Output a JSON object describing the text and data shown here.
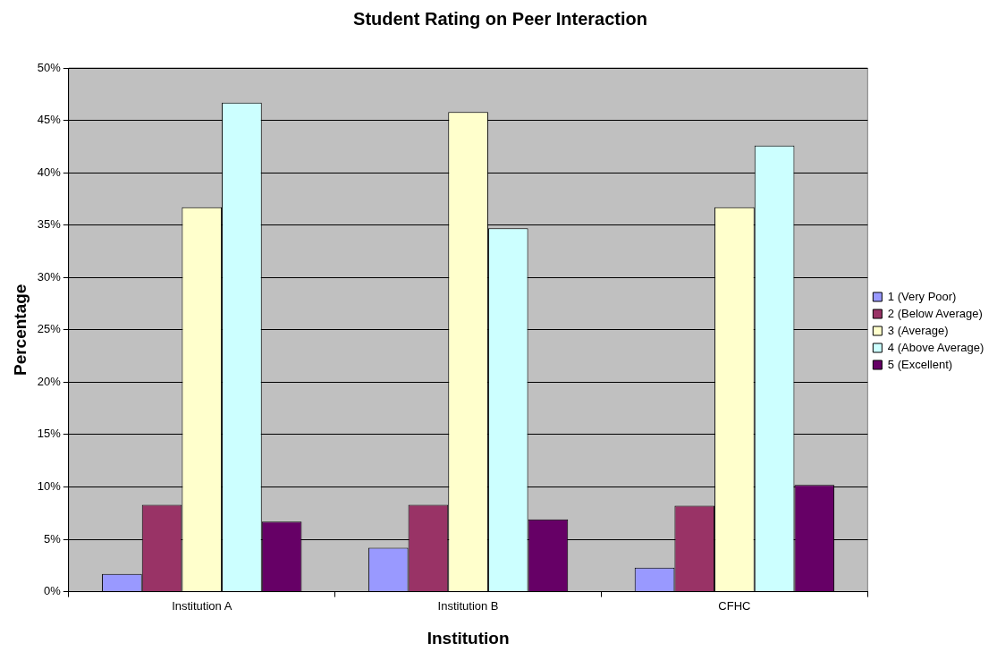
{
  "chart_data": {
    "type": "bar",
    "title": "Student Rating on Peer Interaction",
    "xlabel": "Institution",
    "ylabel": "Percentage",
    "categories": [
      "Institution A",
      "Institution B",
      "CFHC"
    ],
    "series": [
      {
        "name": "1 (Very Poor)",
        "color": "#9999ff",
        "values": [
          1.7,
          4.2,
          2.3
        ]
      },
      {
        "name": "2 (Below Average)",
        "color": "#993366",
        "values": [
          8.3,
          8.3,
          8.2
        ]
      },
      {
        "name": "3 (Average)",
        "color": "#ffffcc",
        "values": [
          36.7,
          45.8,
          36.7
        ]
      },
      {
        "name": "4 (Above Average)",
        "color": "#ccffff",
        "values": [
          46.7,
          34.7,
          42.6
        ]
      },
      {
        "name": "5 (Excellent)",
        "color": "#660066",
        "values": [
          6.7,
          6.9,
          10.2
        ]
      }
    ],
    "ylim": [
      0,
      50
    ],
    "yticks": [
      {
        "value": 0,
        "label": "0%"
      },
      {
        "value": 5,
        "label": "5%"
      },
      {
        "value": 10,
        "label": "10%"
      },
      {
        "value": 15,
        "label": "15%"
      },
      {
        "value": 20,
        "label": "20%"
      },
      {
        "value": 25,
        "label": "25%"
      },
      {
        "value": 30,
        "label": "30%"
      },
      {
        "value": 35,
        "label": "35%"
      },
      {
        "value": 40,
        "label": "40%"
      },
      {
        "value": 45,
        "label": "45%"
      },
      {
        "value": 50,
        "label": "50%"
      }
    ],
    "grid": "y",
    "legend": "right"
  }
}
